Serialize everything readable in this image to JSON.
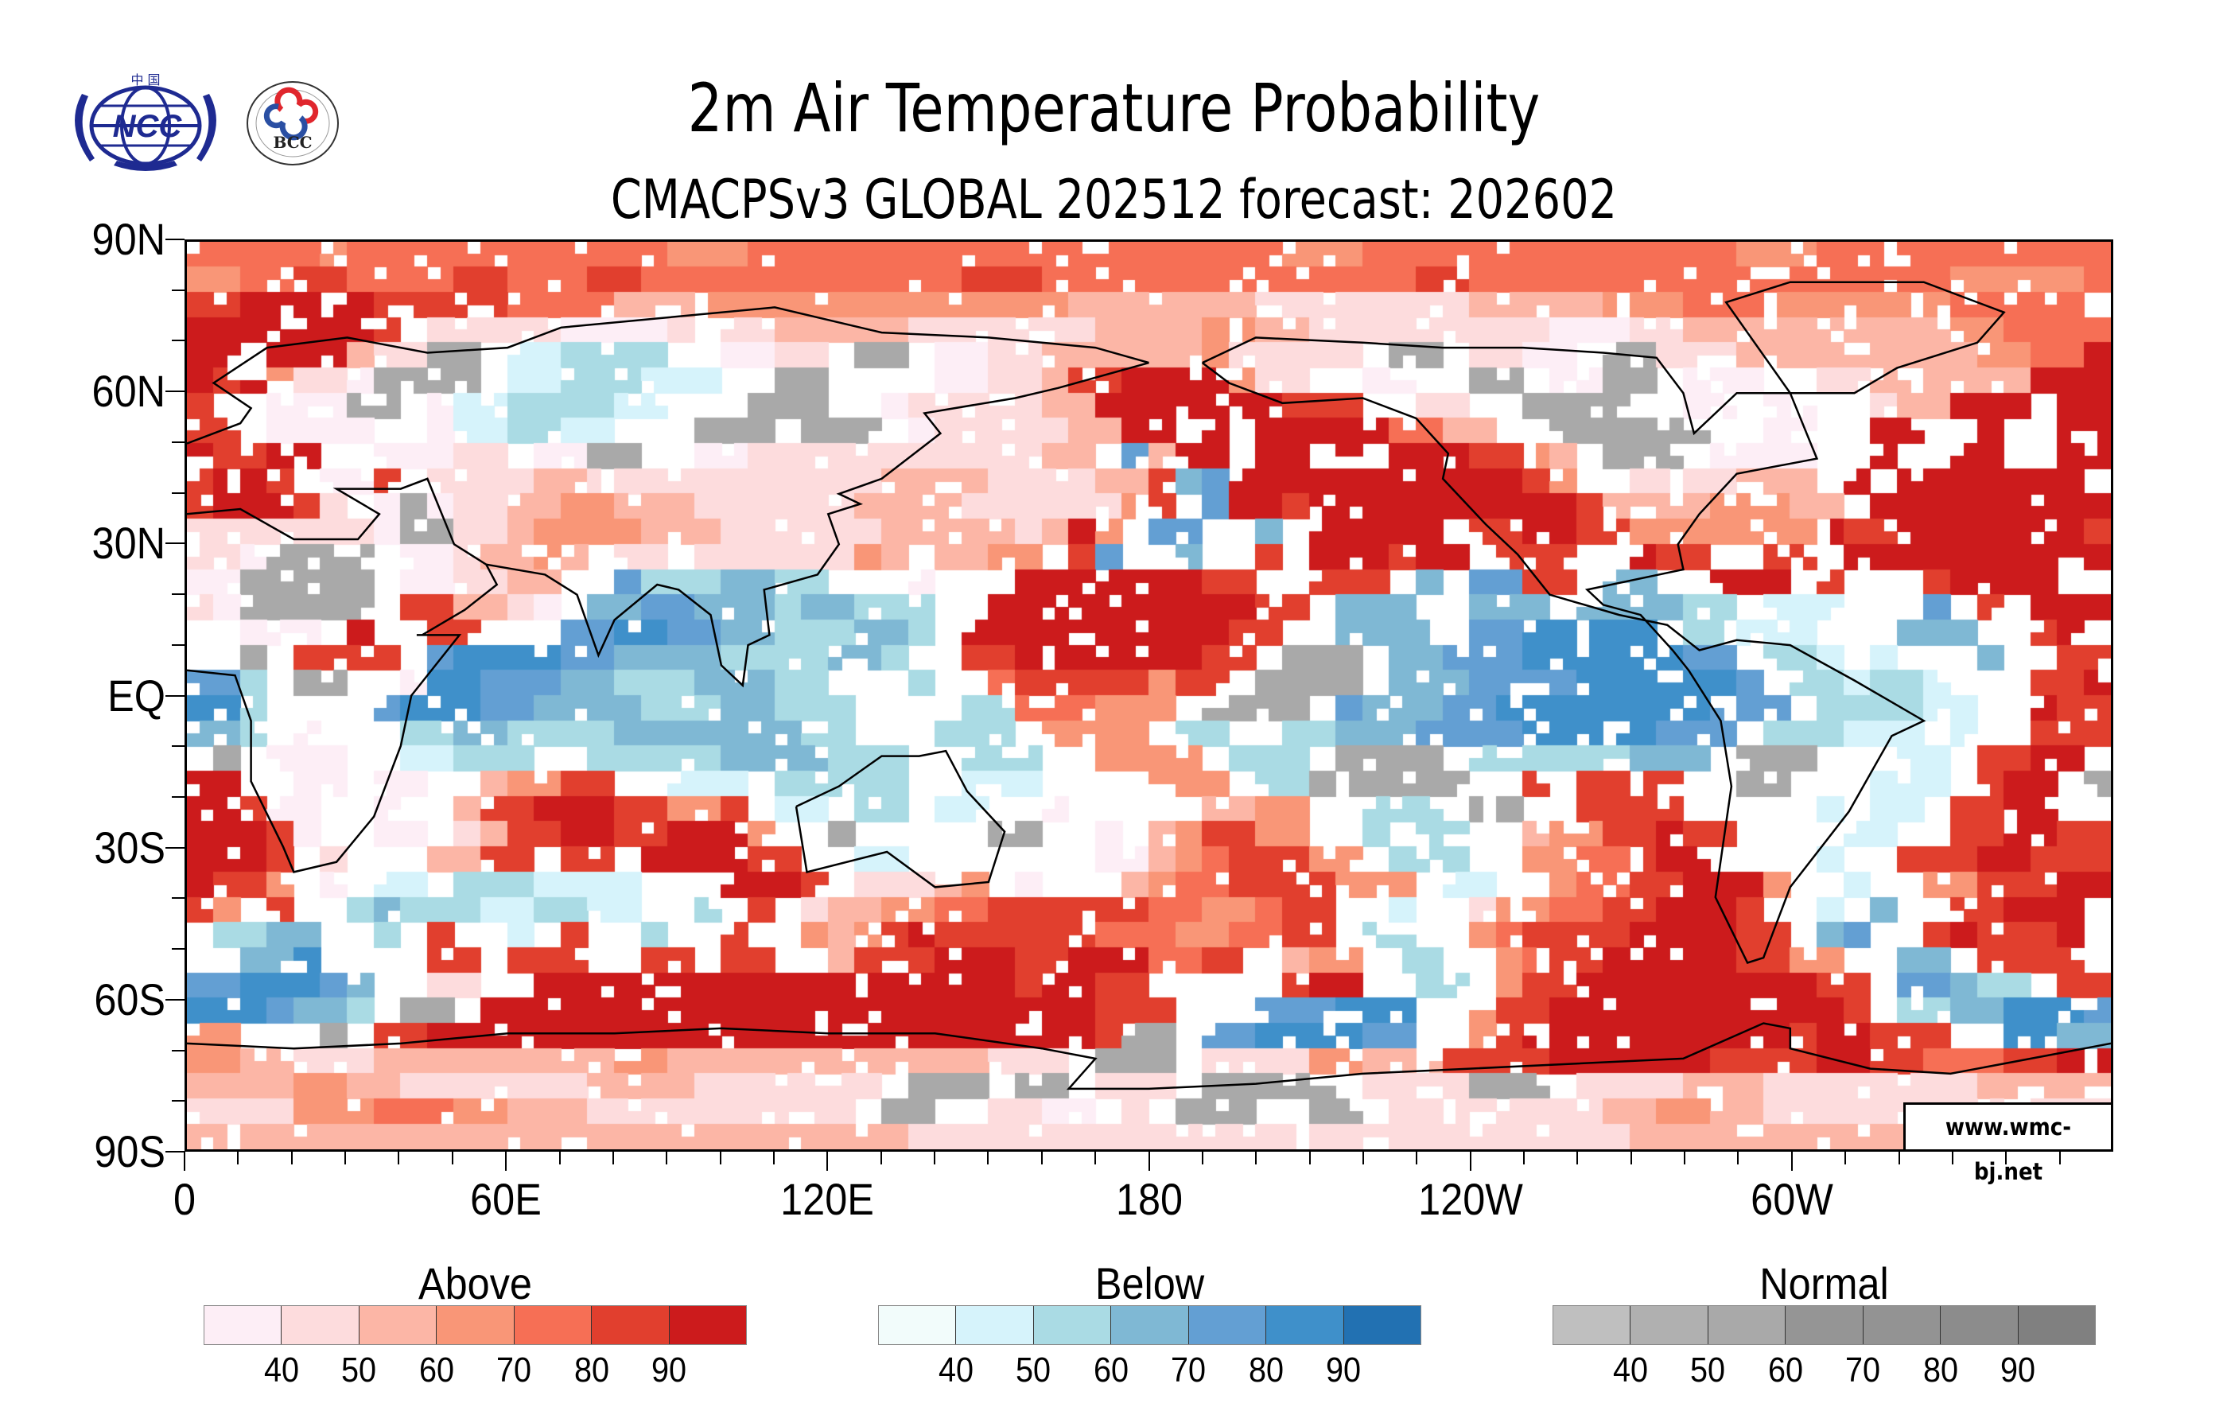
{
  "header": {
    "title": "2m Air Temperature Probability",
    "subtitle": "CMACPSv3 GLOBAL 202512 forecast: 202602",
    "logos": [
      {
        "name": "NCC",
        "top_text": "中 国",
        "icon": "ncc-globe-wreath-logo"
      },
      {
        "name": "BCC",
        "ring_text": "BEIJING CLIMATE CENTER",
        "top_text": "北京气候中心",
        "icon": "bcc-cloud-logo"
      }
    ]
  },
  "watermark": "www.wmc-bj.net",
  "chart_data": {
    "type": "heatmap",
    "title": "2m Air Temperature Probability",
    "subtitle": "CMACPSv3 GLOBAL 202512 forecast: 202602",
    "projection": "cylindrical equidistant",
    "xlim": [
      0,
      360
    ],
    "ylim": [
      -90,
      90
    ],
    "x_ticks": [
      {
        "value": 0,
        "label": "0"
      },
      {
        "value": 60,
        "label": "60E"
      },
      {
        "value": 120,
        "label": "120E"
      },
      {
        "value": 180,
        "label": "180"
      },
      {
        "value": 240,
        "label": "120W"
      },
      {
        "value": 300,
        "label": "60W"
      }
    ],
    "x_minor_tick_step": 10,
    "y_ticks": [
      {
        "value": 90,
        "label": "90N"
      },
      {
        "value": 60,
        "label": "60N"
      },
      {
        "value": 30,
        "label": "30N"
      },
      {
        "value": 0,
        "label": "EQ"
      },
      {
        "value": -30,
        "label": "30S"
      },
      {
        "value": -60,
        "label": "60S"
      },
      {
        "value": -90,
        "label": "90S"
      }
    ],
    "y_minor_tick_step": 10,
    "grid_resolution_deg": 5,
    "encoding": {
      ".": "no dominant category (white)",
      "abcdefg": "Above levels 1-7",
      "hijklmn": "Below levels 1-7",
      "opqrstu": "Normal levels 1-7"
    },
    "rows_north_to_south": [
      "eeeeedeeeeeeeeeeeedddeeeeeeeeeeeeeeeeeeeedddeeeeeeeeeeeeeedddeeeeeeeeeee",
      "ddeeffeeeeffeeeffeeeeeeeeeeeefffeeeeeeeeeeeeeeffeeeeeeeeeeeeeeeeeeddddde",
      "ffgggggfffffeeeecccddddddddddddddcccccccbbbbbbbbcccccdddeeedddddddeeeee",
      "gggggggf.bbbbbaaaab.bbcccccbbbbbbbccccddccbbbbbbbbbaaabbccccccccccddeeeegg",
      "gg.gggcbbqq.iijjjj..aabb.qq.aabbccccccdbbbbb.qq.bbaa.qqbbbcccccccccddeeggg",
      "gfgdbbaqqqq.iijjjiii..qq....aabbcffggggdbb..aa..qq.aaqq.aaa..bbccccccggggg",
      "f..aaaqq.aiijjjjii...qqq..abbbbbccgggggggfff..bb..qqqq..aa.aa..bccggg.gggg",
      "ff.aaaa..aiijjii...qqq.qqq.abbbbbccgg.g.gggggeecc..qqqqqq..aa..gg..g..gggg",
      "gffgg..aaabb.aaqq..aabbbbbbbbbbbcc.lcgg.gg.g.gggffdc.qqq.aaaa..g..gg..gggg",
      "fggf.aaf.bbbbccbbbbbbbbbbbccccbbbbccfklgggggggggggfd..bbbbccc.g.ggggggg..f",
      "fgggfb.aqabbccddcccbbbbbbccccbbbbbbdf.lggfggggggggggfccccdddcc.gggggggggff",
      "bbbbbbbaqqbbcddddcccbbbbbbcccccbcgd.ll..k.ggggg.ffggffdddddddgffgggggggfbb",
      "bbaqqqq.aabccdc.bb.bbbbbbdc.ccdd.fl..k..f.gggfgg.fff..gff..ff.ggggggggggbb",
      "aaqqqqq.aabbcc..ljjjkkjj...a...gggggggff..fff.k.llff.kk..ggg.f...fgggg..ab",
      "baqqqqq.ffccba.kkllkkkjkkjjj..ggggggggggff.kkk..kkk.kkkkjj.iii...l.f.ggg.b",
      "..aaa.g..ff...llmmllkkjjjkkj.ggggggggggff..kkkk.llmmmmm.jjiii...kkk..fg..a",
      "..q.ffff.lmmmmllkkkkjjjjkkj..ffgggggggff.qqq.kklllmmmmmmll.jji.i...k..ff..",
      "llj.qq..ammlllkkjjjkkkjj...j..efffffdff.qqqq.kkkllllmmmmmml.jjijji...ffg..",
      "mmj....lmmmllkkkkjjjkkjjj....jjeeeddd.qqqq.lkkkllmmmmmmmmlll.jjjjii..gff..",
      "kkj.a...jjkkjjjjkkkkkkkjj...jjj.dddd.jj..jjkkkllllmmmmmlll.jjjiii.i..fff.",
      ".q.aaa..iijjj..jjjjjkkkkjjj..jjj..dddd.jjj.qqqq.jjjjjjkkk.qqq...ii.ffgg..",
      "gg..aa.aa..cddff..iii.jjjjj..iii....ddd.jjqqqqqq..f.ffff..qq...iii.fgg.q.",
      "ggfaa..a..cffgggffddf.ii.jj.ii..a.....ccdd..jjj.qq..ffff.....i.ii.ffgg...",
      "gggfa..aa.bcffggffgggd..q.....qq..a.cdffdd..j.jj..cddffgff....ii..ffggff.",
      "gggf.b...ccff.ff.ggggff..ii.......aacdefffdd.jjj..ddeefgg....i..fffggffff",
      "gffd.a.ii.jjjiiii...gggf.bbbcd.a...cdeeffffddd.ii..deeffgggd..i..ddfffggg",
      "fd.f..jkjjjiijjii..j.f.bccddeeffffffeeddeff..i..bddeeffgggf..i.k..ffggg.ff",
      ".jjkk..j.f..i.f..j..f..dcdfgffffffeeeddeeff.jj..deffffggggff.kl..fgfffg..",
      "..kkm....ff.fff..ff.ff..cfffgggffgggeeff.cdd.jj..deffgggggffdd..kk.ffff.f",
      "llmmmlk..bb..ggggggggggggggggggfggff.....fgg..jj.dffgggggggggff.llkjj.ffgg",
      "mmmlkkj.qq.gggggggggggggggggggggggfff...lllmmm..dffgggggggggggf.jjkkmmmlkk",
      "dd...q.ffgggggggggggggggggggggggggfqq.llmmmmll..dfggggggggggfggfff..mmkkff",
      "ddccbbbcccccccccddccccccccccccbbb.qqq.bbbbddcccffffggggggffffggffeeeffggff",
      "ccccddccbbbbbbbccccbbbbbbb.qqq.qq.bbb.qqqqq.bbbbqqq.bbbbcccbbbbbbbbccccccc",
      "bbbbdddeeeddcccbbbbbbbbbb.qq..bbaa.b.qqq..qq.bbbbbbbbccddccbbbbbbbbbbbbbbb",
      "cccccccccccccccccccccccccccbbbbbbbbbbbbbbbbbbbbbbbbbbbcccccccccccccccccccc"
    ],
    "legends": [
      {
        "name": "Above",
        "ticks": [
          "40",
          "50",
          "60",
          "70",
          "80",
          "90"
        ],
        "colors": [
          "#fdeef6",
          "#fddcdd",
          "#fcb6a6",
          "#f99677",
          "#f66f55",
          "#e13f2e",
          "#cc1b1c"
        ]
      },
      {
        "name": "Below",
        "ticks": [
          "40",
          "50",
          "60",
          "70",
          "80",
          "90"
        ],
        "colors": [
          "#f2fcfb",
          "#d6f3fb",
          "#aadbe4",
          "#7fb8d4",
          "#639fd3",
          "#3f90ca",
          "#2271b2"
        ]
      },
      {
        "name": "Normal",
        "ticks": [
          "40",
          "50",
          "60",
          "70",
          "80",
          "90"
        ],
        "colors": [
          "#bfbfbf",
          "#b0b0b0",
          "#a9a9a9",
          "#959595",
          "#939393",
          "#8c8c8c",
          "#808080"
        ]
      }
    ]
  }
}
